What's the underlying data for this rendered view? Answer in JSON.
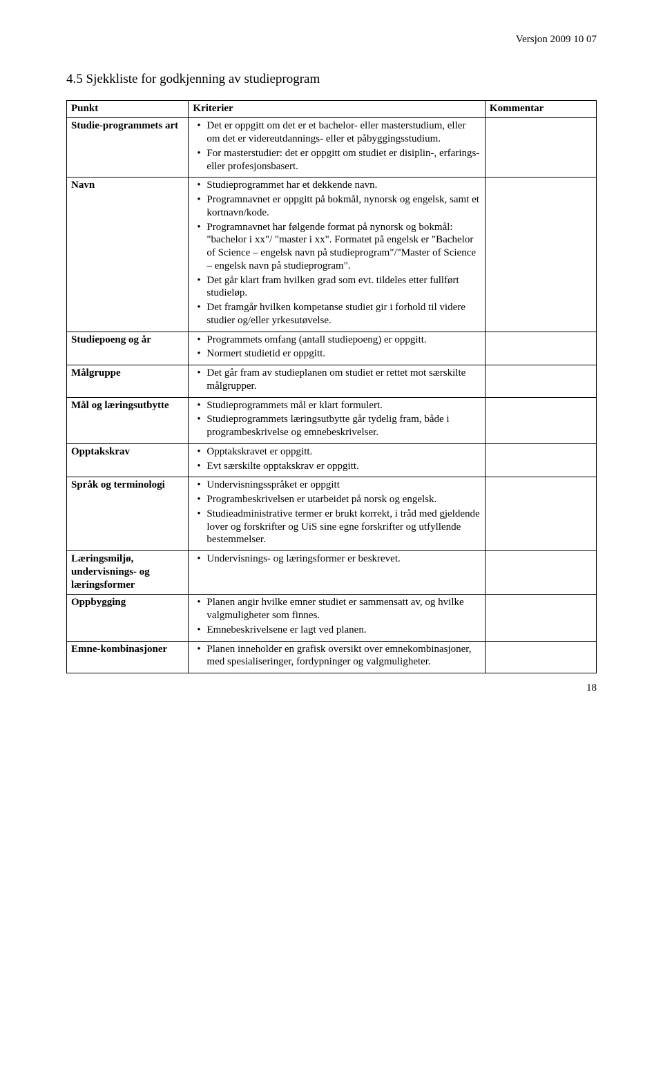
{
  "version_text": "Versjon 2009 10 07",
  "section_title": "4.5 Sjekkliste for godkjenning av studieprogram",
  "headers": {
    "punkt": "Punkt",
    "kriterier": "Kriterier",
    "kommentar": "Kommentar"
  },
  "page_number": "18",
  "rows": {
    "r0": {
      "label": "Studie-programmets art",
      "items": [
        "Det er oppgitt om det er et bachelor- eller masterstudium, eller om det er videreutdannings- eller et påbyggingsstudium.",
        "For masterstudier: det er oppgitt om studiet er disiplin-, erfarings- eller profesjonsbasert."
      ]
    },
    "r1": {
      "label": "Navn",
      "items": [
        "Studieprogrammet har et dekkende navn.",
        "Programnavnet er oppgitt på bokmål, nynorsk og engelsk, samt et kortnavn/kode.",
        "Programnavnet har følgende format på nynorsk og bokmål: \"bachelor i xx\"/ \"master i xx\". Formatet på engelsk er \"Bachelor of Science – engelsk navn på studieprogram\"/\"Master of Science – engelsk navn på studieprogram\".",
        "Det går klart fram hvilken grad som evt. tildeles etter fullført studieløp.",
        "Det framgår hvilken kompetanse studiet gir i forhold til videre studier og/eller yrkesutøvelse."
      ]
    },
    "r2": {
      "label": "Studiepoeng og år",
      "items": [
        "Programmets omfang (antall studiepoeng) er oppgitt.",
        "Normert studietid er oppgitt."
      ]
    },
    "r3": {
      "label": "Målgruppe",
      "items": [
        "Det går fram av studieplanen om studiet er rettet mot særskilte målgrupper."
      ]
    },
    "r4": {
      "label": "Mål og læringsutbytte",
      "items": [
        "Studieprogrammets mål er klart formulert.",
        "Studieprogrammets læringsutbytte går tydelig fram, både i programbeskrivelse og emnebeskrivelser."
      ]
    },
    "r5": {
      "label": "Opptakskrav",
      "items": [
        "Opptakskravet er oppgitt.",
        "Evt særskilte opptakskrav er oppgitt."
      ]
    },
    "r6": {
      "label": "Språk og terminologi",
      "items": [
        "Undervisningsspråket er oppgitt",
        "Programbeskrivelsen er utarbeidet på norsk og engelsk.",
        "Studieadministrative termer er brukt korrekt, i tråd med gjeldende lover og forskrifter og UiS sine egne forskrifter og utfyllende bestemmelser."
      ]
    },
    "r7": {
      "label": "Læringsmiljø, undervisnings- og læringsformer",
      "items": [
        "Undervisnings- og læringsformer er beskrevet."
      ]
    },
    "r8": {
      "label": "Oppbygging",
      "items": [
        "Planen angir hvilke emner studiet er sammensatt av, og hvilke valgmuligheter som finnes.",
        "Emnebeskrivelsene er lagt ved planen."
      ]
    },
    "r9": {
      "label": "Emne-kombinasjoner",
      "items": [
        "Planen inneholder en grafisk oversikt over emnekombinasjoner, med spesialiseringer, fordypninger og valgmuligheter."
      ]
    }
  }
}
